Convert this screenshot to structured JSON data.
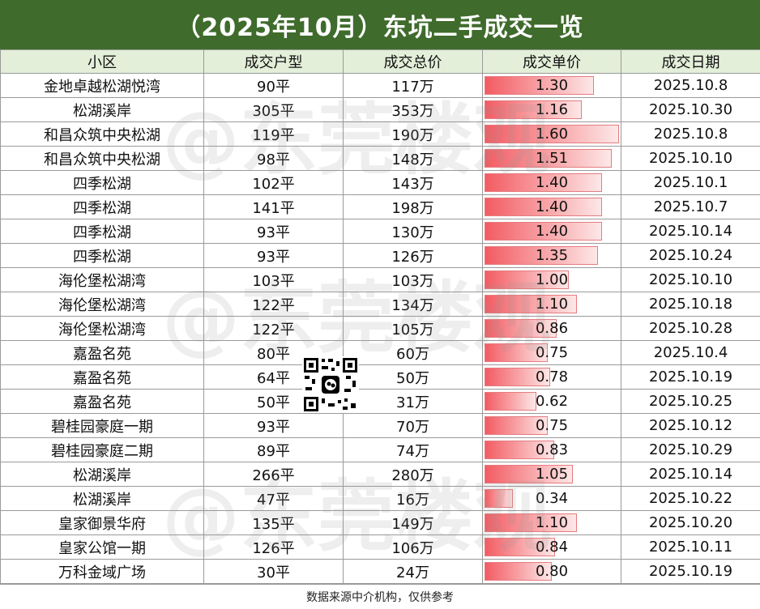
{
  "title": "（2025年10月）东坑二手成交一览",
  "columns": [
    "小区",
    "成交户型",
    "成交总价",
    "成交单价",
    "成交日期"
  ],
  "price_scale_max": 1.6,
  "rows": [
    {
      "name": "金地卓越松湖悦湾",
      "area": "90平",
      "total": "117万",
      "unit": "1.30",
      "unit_value": 1.3,
      "date": "2025.10.8"
    },
    {
      "name": "松湖溪岸",
      "area": "305平",
      "total": "353万",
      "unit": "1.16",
      "unit_value": 1.16,
      "date": "2025.10.30"
    },
    {
      "name": "和昌众筑中央松湖",
      "area": "119平",
      "total": "190万",
      "unit": "1.60",
      "unit_value": 1.6,
      "date": "2025.10.8"
    },
    {
      "name": "和昌众筑中央松湖",
      "area": "98平",
      "total": "148万",
      "unit": "1.51",
      "unit_value": 1.51,
      "date": "2025.10.10"
    },
    {
      "name": "四季松湖",
      "area": "102平",
      "total": "143万",
      "unit": "1.40",
      "unit_value": 1.4,
      "date": "2025.10.1"
    },
    {
      "name": "四季松湖",
      "area": "141平",
      "total": "198万",
      "unit": "1.40",
      "unit_value": 1.4,
      "date": "2025.10.7"
    },
    {
      "name": "四季松湖",
      "area": "93平",
      "total": "130万",
      "unit": "1.40",
      "unit_value": 1.4,
      "date": "2025.10.14"
    },
    {
      "name": "四季松湖",
      "area": "93平",
      "total": "126万",
      "unit": "1.35",
      "unit_value": 1.35,
      "date": "2025.10.24"
    },
    {
      "name": "海伦堡松湖湾",
      "area": "103平",
      "total": "103万",
      "unit": "1.00",
      "unit_value": 1.0,
      "date": "2025.10.10"
    },
    {
      "name": "海伦堡松湖湾",
      "area": "122平",
      "total": "134万",
      "unit": "1.10",
      "unit_value": 1.1,
      "date": "2025.10.18"
    },
    {
      "name": "海伦堡松湖湾",
      "area": "122平",
      "total": "105万",
      "unit": "0.86",
      "unit_value": 0.86,
      "date": "2025.10.28"
    },
    {
      "name": "嘉盈名苑",
      "area": "80平",
      "total": "60万",
      "unit": "0.75",
      "unit_value": 0.75,
      "date": "2025.10.4"
    },
    {
      "name": "嘉盈名苑",
      "area": "64平",
      "total": "50万",
      "unit": "0.78",
      "unit_value": 0.78,
      "date": "2025.10.19"
    },
    {
      "name": "嘉盈名苑",
      "area": "50平",
      "total": "31万",
      "unit": "0.62",
      "unit_value": 0.62,
      "date": "2025.10.25"
    },
    {
      "name": "碧桂园豪庭一期",
      "area": "93平",
      "total": "70万",
      "unit": "0.75",
      "unit_value": 0.75,
      "date": "2025.10.12"
    },
    {
      "name": "碧桂园豪庭二期",
      "area": "89平",
      "total": "74万",
      "unit": "0.83",
      "unit_value": 0.83,
      "date": "2025.10.29"
    },
    {
      "name": "松湖溪岸",
      "area": "266平",
      "total": "280万",
      "unit": "1.05",
      "unit_value": 1.05,
      "date": "2025.10.14"
    },
    {
      "name": "松湖溪岸",
      "area": "47平",
      "total": "16万",
      "unit": "0.34",
      "unit_value": 0.34,
      "date": "2025.10.22"
    },
    {
      "name": "皇家御景华府",
      "area": "135平",
      "total": "149万",
      "unit": "1.10",
      "unit_value": 1.1,
      "date": "2025.10.20"
    },
    {
      "name": "皇家公馆一期",
      "area": "126平",
      "total": "106万",
      "unit": "0.84",
      "unit_value": 0.84,
      "date": "2025.10.11"
    },
    {
      "name": "万科金域广场",
      "area": "30平",
      "total": "24万",
      "unit": "0.80",
      "unit_value": 0.8,
      "date": "2025.10.19"
    }
  ],
  "footer": "数据来源中介机构，仅供参考",
  "watermark": "@东莞楼观",
  "colors": {
    "title_bg": "#3f6b2c",
    "header_bg": "#e3efd9",
    "bar": "#f25c63"
  }
}
